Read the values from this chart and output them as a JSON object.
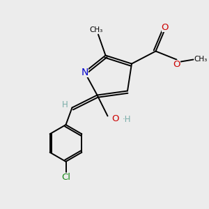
{
  "background_color": "#ececec",
  "bond_color": "#000000",
  "nitrogen_color": "#0000cc",
  "oxygen_color": "#cc0000",
  "chlorine_color": "#1a8a1a",
  "oh_color": "#7aada8",
  "h_color": "#7aada8",
  "lw": 1.4,
  "figsize": [
    3.0,
    3.0
  ],
  "dpi": 100,
  "xlim": [
    0,
    10
  ],
  "ylim": [
    0,
    10
  ]
}
